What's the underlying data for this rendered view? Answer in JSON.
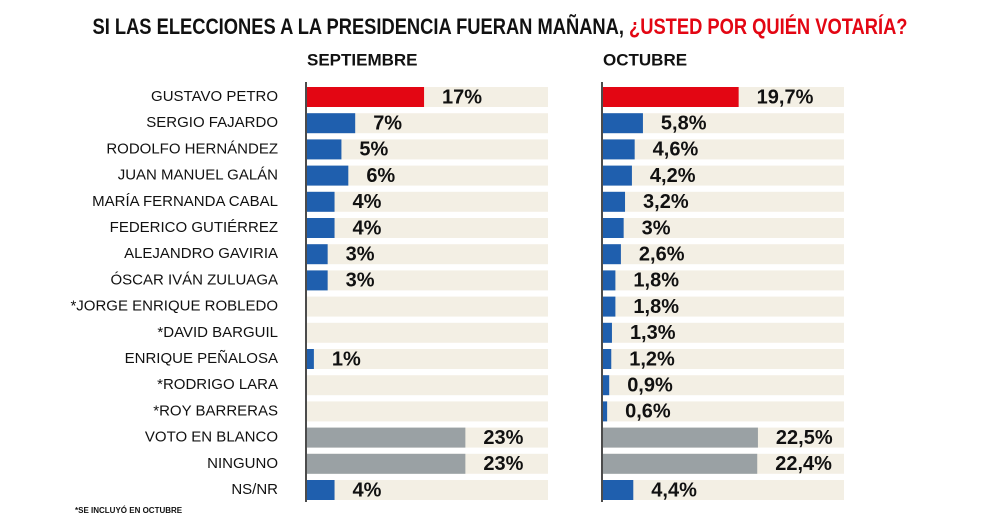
{
  "chart_data": {
    "type": "bar",
    "orientation": "horizontal",
    "title": "SI LAS ELECCIONES A LA PRESIDENCIA FUERAN MAÑANA, ",
    "title_highlight": "¿USTED POR QUIÉN VOTARÍA?",
    "note": "*SE INCLUYÓ EN OCTUBRE",
    "categories": [
      "GUSTAVO PETRO",
      "SERGIO FAJARDO",
      "RODOLFO HERNÁNDEZ",
      "JUAN MANUEL GALÁN",
      "MARÍA FERNANDA CABAL",
      "FEDERICO GUTIÉRREZ",
      "ALEJANDRO GAVIRIA",
      "ÓSCAR IVÁN ZULUAGA",
      "*JORGE ENRIQUE ROBLEDO",
      "*DAVID BARGUIL",
      "ENRIQUE PEÑALOSA",
      "*RODRIGO LARA",
      "*ROY BARRERAS",
      "VOTO EN BLANCO",
      "NINGUNO",
      "NS/NR"
    ],
    "colors": [
      "#e30613",
      "#1f5fae",
      "#1f5fae",
      "#1f5fae",
      "#1f5fae",
      "#1f5fae",
      "#1f5fae",
      "#1f5fae",
      "#1f5fae",
      "#1f5fae",
      "#1f5fae",
      "#1f5fae",
      "#1f5fae",
      "#9aa1a4",
      "#9aa1a4",
      "#1f5fae"
    ],
    "xlim": [
      0,
      35
    ],
    "series": [
      {
        "name": "SEPTIEMBRE",
        "values": [
          17,
          7,
          5,
          6,
          4,
          4,
          3,
          3,
          null,
          null,
          1,
          null,
          null,
          23,
          23,
          4
        ],
        "value_labels": [
          "17%",
          "7%",
          "5%",
          "6%",
          "4%",
          "4%",
          "3%",
          "3%",
          null,
          null,
          "1%",
          null,
          null,
          "23%",
          "23%",
          "4%"
        ]
      },
      {
        "name": "OCTUBRE",
        "values": [
          19.7,
          5.8,
          4.6,
          4.2,
          3.2,
          3,
          2.6,
          1.8,
          1.8,
          1.3,
          1.2,
          0.9,
          0.6,
          22.5,
          22.4,
          4.4
        ],
        "value_labels": [
          "19,7%",
          "5,8%",
          "4,6%",
          "4,2%",
          "3,2%",
          "3%",
          "2,6%",
          "1,8%",
          "1,8%",
          "1,3%",
          "1,2%",
          "0,9%",
          "0,6%",
          "22,5%",
          "22,4%",
          "4,4%"
        ]
      }
    ]
  }
}
